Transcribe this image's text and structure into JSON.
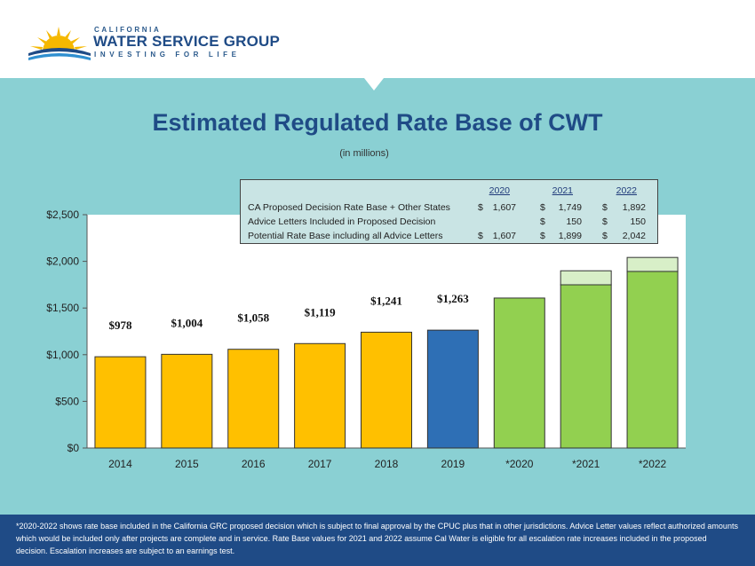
{
  "brand": {
    "top": "CALIFORNIA",
    "main": "WATER SERVICE GROUP",
    "tagline": "INVESTING FOR LIFE"
  },
  "colors": {
    "background_band": "#8ad0d3",
    "header_bg": "#ffffff",
    "footer_bg": "#1f4b86",
    "title": "#1f4b86",
    "bar_historic": "#ffc000",
    "bar_2019": "#2e6fb5",
    "bar_proposed": "#92d050",
    "bar_advice": "#d8efc8",
    "plot_bg": "#ffffff"
  },
  "chart_data": {
    "type": "bar",
    "title": "Estimated Regulated Rate Base of CWT",
    "subtitle": "(in millions)",
    "categories": [
      "2014",
      "2015",
      "2016",
      "2017",
      "2018",
      "2019",
      "*2020",
      "*2021",
      "*2022"
    ],
    "series": [
      {
        "values": [
          978,
          1004,
          1058,
          1119,
          1241,
          1263,
          1607,
          1749,
          1892
        ]
      },
      {
        "values": [
          0,
          0,
          0,
          0,
          0,
          0,
          0,
          150,
          150
        ]
      }
    ],
    "data_labels": [
      "$978",
      "$1,004",
      "$1,058",
      "$1,119",
      "$1,241",
      "$1,263",
      "",
      "",
      ""
    ],
    "y_ticks": [
      0,
      500,
      1000,
      1500,
      2000,
      2500
    ],
    "y_tick_labels": [
      "$0",
      "$500",
      "$1,000",
      "$1,500",
      "$2,000",
      "$2,500"
    ],
    "ylim": [
      0,
      2500
    ],
    "grid": false,
    "legend": "none",
    "table": {
      "years": [
        "2020",
        "2021",
        "2022"
      ],
      "rows": [
        {
          "label": "CA Proposed Decision Rate Base + Other States",
          "values": [
            "1,607",
            "1,749",
            "1,892"
          ]
        },
        {
          "label": "Advice Letters Included in Proposed Decision",
          "values": [
            "",
            "150",
            "150"
          ]
        },
        {
          "label": "Potential Rate Base including all Advice Letters",
          "values": [
            "1,607",
            "1,899",
            "2,042"
          ]
        }
      ],
      "currency": "$"
    }
  },
  "footer": {
    "note": "*2020-2022 shows rate base included in the California GRC proposed decision which is subject to final approval by the CPUC plus that in other jurisdictions. Advice Letter values reflect authorized amounts which would be included only after projects are complete and in service. Rate Base values for 2021 and 2022 assume Cal Water is eligible for all escalation rate increases included in the proposed decision. Escalation increases are subject to an earnings test."
  }
}
